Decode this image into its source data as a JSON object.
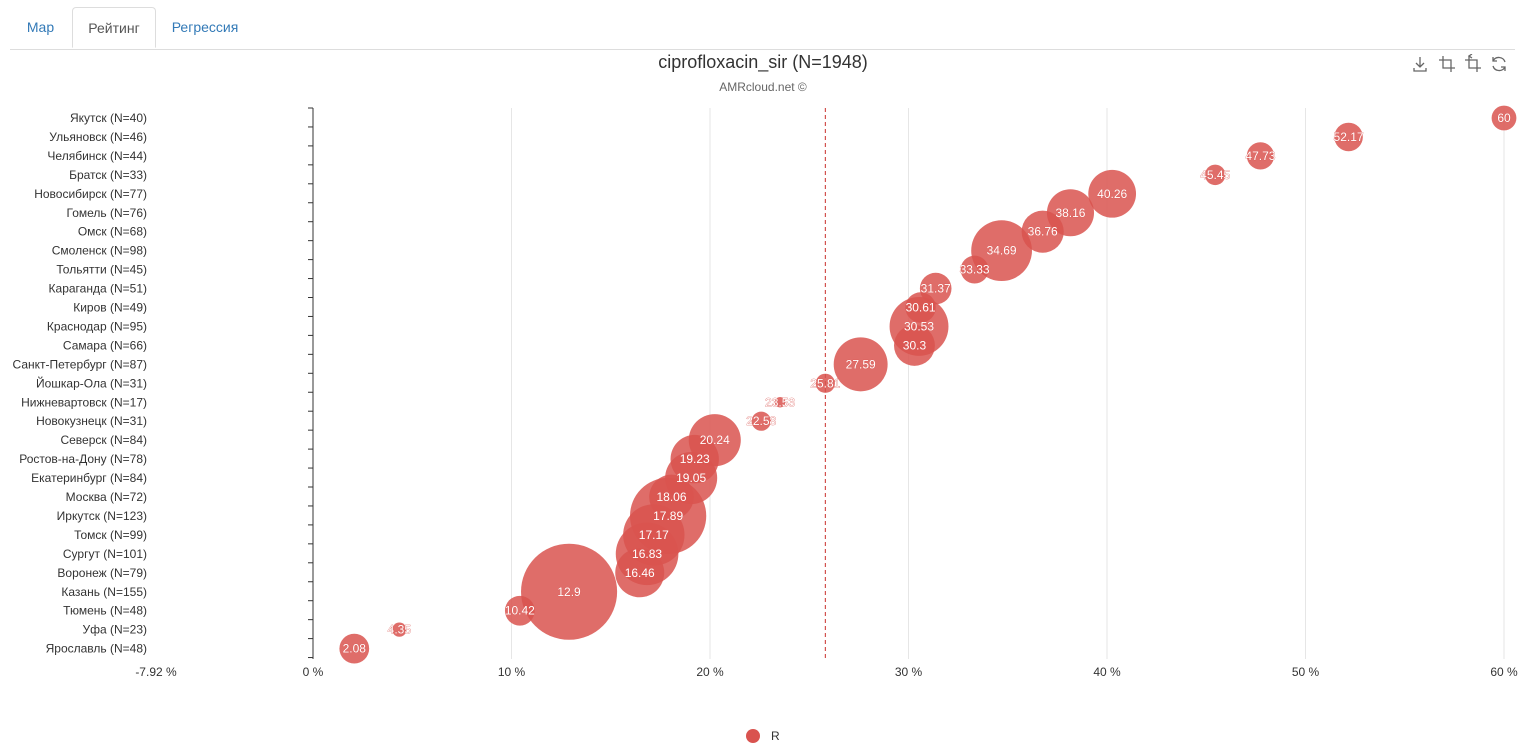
{
  "tabs": [
    {
      "label": "Map",
      "active": false
    },
    {
      "label": "Рейтинг",
      "active": true
    },
    {
      "label": "Регрессия",
      "active": false
    }
  ],
  "toolbox": [
    "download-icon",
    "zoom-icon",
    "zoom-reset-icon",
    "restore-icon"
  ],
  "colors": {
    "series": "#d9534f",
    "refline": "#c9302c",
    "grid": "#e6e6e6",
    "axis": "#333333"
  },
  "chart_data": {
    "type": "scatter",
    "title": "ciprofloxacin_sir (N=1948)",
    "subtitle": "AMRcloud.net ©",
    "xlim": [
      -7.92,
      60
    ],
    "x_ticks": [
      "-7.92 %",
      "0 %",
      "10 %",
      "20 %",
      "30 %",
      "40 %",
      "50 %",
      "60 %"
    ],
    "reference_line_x": 25.81,
    "grid": true,
    "legend": {
      "position": "bottom-center",
      "entries": [
        "R"
      ]
    },
    "series": [
      {
        "name": "R",
        "points": [
          {
            "category": "Якутск (N=40)",
            "x": 60,
            "n": 40,
            "label": "60"
          },
          {
            "category": "Ульяновск (N=46)",
            "x": 52.17,
            "n": 46,
            "label": "52.17"
          },
          {
            "category": "Челябинск (N=44)",
            "x": 47.73,
            "n": 44,
            "label": "47.73"
          },
          {
            "category": "Братск (N=33)",
            "x": 45.45,
            "n": 33,
            "label": "45.45"
          },
          {
            "category": "Новосибирск (N=77)",
            "x": 40.26,
            "n": 77,
            "label": "40.26"
          },
          {
            "category": "Гомель (N=76)",
            "x": 38.16,
            "n": 76,
            "label": "38.16"
          },
          {
            "category": "Омск (N=68)",
            "x": 36.76,
            "n": 68,
            "label": "36.76"
          },
          {
            "category": "Смоленск (N=98)",
            "x": 34.69,
            "n": 98,
            "label": "34.69"
          },
          {
            "category": "Тольятти (N=45)",
            "x": 33.33,
            "n": 45,
            "label": "33.33"
          },
          {
            "category": "Караганда (N=51)",
            "x": 31.37,
            "n": 51,
            "label": "31.37"
          },
          {
            "category": "Киров (N=49)",
            "x": 30.61,
            "n": 49,
            "label": "30.61"
          },
          {
            "category": "Краснодар (N=95)",
            "x": 30.53,
            "n": 95,
            "label": "30.53"
          },
          {
            "category": "Самара (N=66)",
            "x": 30.3,
            "n": 66,
            "label": "30.3"
          },
          {
            "category": "Санкт-Петербург (N=87)",
            "x": 27.59,
            "n": 87,
            "label": "27.59"
          },
          {
            "category": "Йошкар-Ола (N=31)",
            "x": 25.81,
            "n": 31,
            "label": "25.81"
          },
          {
            "category": "Нижневартовск (N=17)",
            "x": 23.53,
            "n": 17,
            "label": "23.53"
          },
          {
            "category": "Новокузнецк (N=31)",
            "x": 22.58,
            "n": 31,
            "label": "22.58"
          },
          {
            "category": "Северск (N=84)",
            "x": 20.24,
            "n": 84,
            "label": "20.24"
          },
          {
            "category": "Ростов-на-Дону (N=78)",
            "x": 19.23,
            "n": 78,
            "label": "19.23"
          },
          {
            "category": "Екатеринбург (N=84)",
            "x": 19.05,
            "n": 84,
            "label": "19.05"
          },
          {
            "category": "Москва (N=72)",
            "x": 18.06,
            "n": 72,
            "label": "18.06"
          },
          {
            "category": "Иркутск (N=123)",
            "x": 17.89,
            "n": 123,
            "label": "17.89"
          },
          {
            "category": "Томск (N=99)",
            "x": 17.17,
            "n": 99,
            "label": "17.17"
          },
          {
            "category": "Сургут (N=101)",
            "x": 16.83,
            "n": 101,
            "label": "16.83"
          },
          {
            "category": "Воронеж (N=79)",
            "x": 16.46,
            "n": 79,
            "label": "16.46"
          },
          {
            "category": "Казань (N=155)",
            "x": 12.9,
            "n": 155,
            "label": "12.9"
          },
          {
            "category": "Тюмень (N=48)",
            "x": 10.42,
            "n": 48,
            "label": "10.42"
          },
          {
            "category": "Уфа (N=23)",
            "x": 4.35,
            "n": 23,
            "label": "4.35"
          },
          {
            "category": "Ярославль (N=48)",
            "x": 2.08,
            "n": 48,
            "label": "2.08"
          }
        ]
      }
    ]
  }
}
